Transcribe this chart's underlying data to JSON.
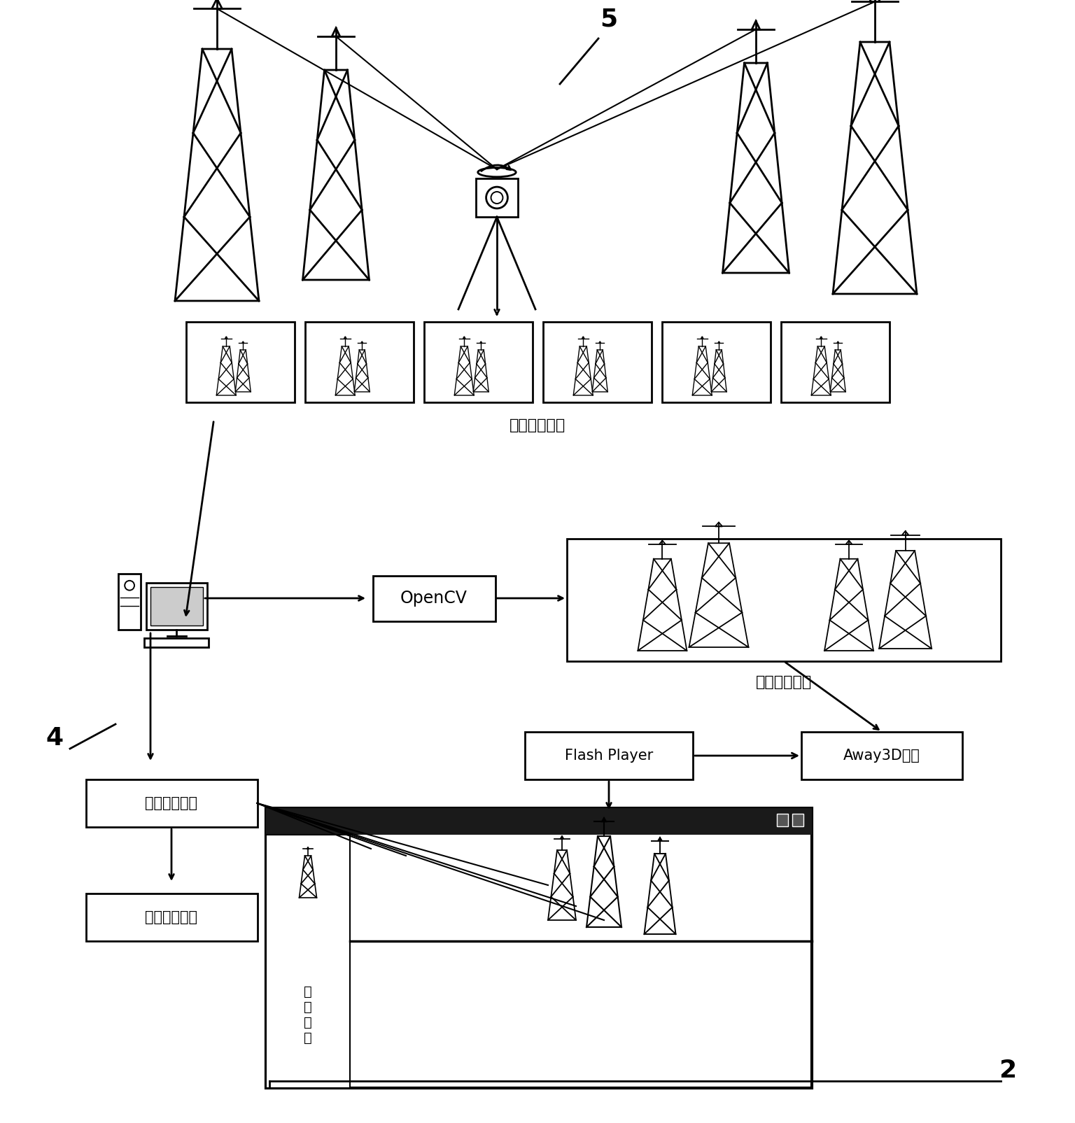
{
  "bg_color": "#ffffff",
  "label_5": "5",
  "label_4": "4",
  "label_2": "2",
  "text_local_photos": "局部照片组图",
  "text_complete_map": "完整全景贴图",
  "text_opencv": "OpenCV",
  "text_flash": "Flash Player",
  "text_away3d": "Away3D引擎",
  "text_hotspot_pos": "热点位置编辑",
  "text_hotspot_param": "热点参数编辑",
  "text_perf_param": "性\n能\n参\n数"
}
